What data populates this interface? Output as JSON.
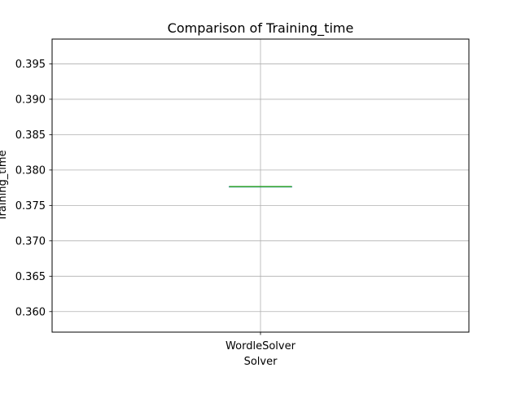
{
  "chart_data": {
    "type": "box",
    "title": "Comparison of Training_time",
    "xlabel": "Solver",
    "ylabel": "Training_time",
    "categories": [
      "WordleSolver"
    ],
    "boxes": [
      {
        "category": "WordleSolver",
        "min": 0.37766,
        "q1": 0.37766,
        "median": 0.37766,
        "q3": 0.37766,
        "max": 0.37766
      }
    ],
    "ylim": [
      0.3571,
      0.3985
    ],
    "yticks": [
      0.36,
      0.365,
      0.37,
      0.375,
      0.38,
      0.385,
      0.39,
      0.395
    ],
    "ytick_labels": [
      "0.360",
      "0.365",
      "0.370",
      "0.375",
      "0.380",
      "0.385",
      "0.390",
      "0.395"
    ],
    "grid": true,
    "colors": {
      "box": "#1f77b4",
      "median": "#2ca02c",
      "grid": "#b0b0b0",
      "axes": "#000000"
    }
  }
}
